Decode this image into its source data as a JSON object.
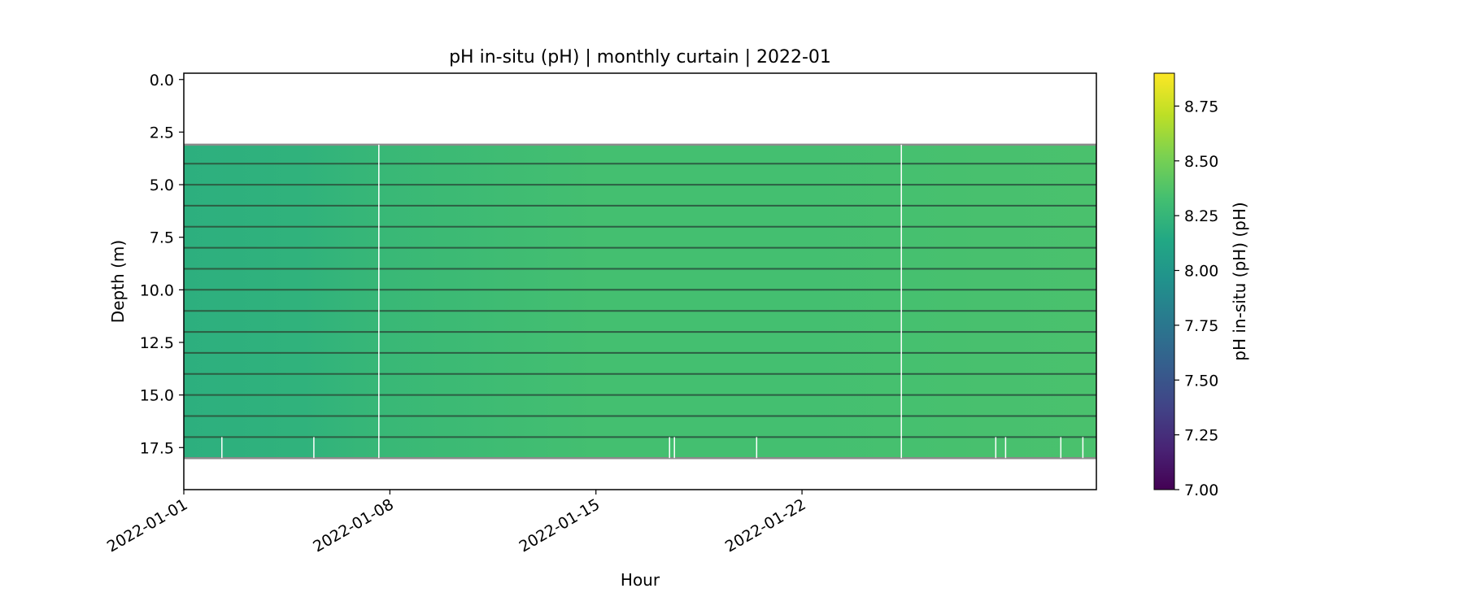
{
  "chart_data": {
    "type": "heatmap",
    "title": "pH in-situ (pH) | monthly curtain | 2022-01",
    "xlabel": "Hour",
    "ylabel": "Depth (m)",
    "colorbar_label": "pH in-situ (pH) (pH)",
    "colormap": "viridis",
    "x_start": "2022-01-01",
    "x_end": "2022-02-01",
    "xticks": [
      "2022-01-01",
      "2022-01-08",
      "2022-01-15",
      "2022-01-22"
    ],
    "ylim": [
      19.5,
      -0.3
    ],
    "yticks": [
      "0.0",
      "2.5",
      "5.0",
      "7.5",
      "10.0",
      "12.5",
      "15.0",
      "17.5"
    ],
    "clim": [
      7.0,
      8.9
    ],
    "cticks": [
      "7.00",
      "7.25",
      "7.50",
      "7.75",
      "8.00",
      "8.25",
      "8.50",
      "8.75"
    ],
    "data_depth_range": [
      3.1,
      18.0
    ],
    "sensor_depths": [
      3,
      4,
      5,
      6,
      7,
      8,
      9,
      10,
      11,
      12,
      13,
      14,
      15,
      16,
      17,
      18
    ],
    "ph_trend": [
      {
        "date": "2022-01-01",
        "ph": 8.2
      },
      {
        "date": "2022-01-05",
        "ph": 8.22
      },
      {
        "date": "2022-01-08",
        "ph": 8.27
      },
      {
        "date": "2022-01-15",
        "ph": 8.33
      },
      {
        "date": "2022-01-22",
        "ph": 8.33
      },
      {
        "date": "2022-02-01",
        "ph": 8.35
      }
    ],
    "data_gaps": [
      {
        "date": "2022-01-07T15:00",
        "depth_from": 3.1,
        "depth_to": 18.0
      },
      {
        "date": "2022-01-25T09:00",
        "depth_from": 3.1,
        "depth_to": 18.0
      },
      {
        "date": "2022-01-02T07:00",
        "depth_from": 17.0,
        "depth_to": 18.0
      },
      {
        "date": "2022-01-05T10:00",
        "depth_from": 17.0,
        "depth_to": 18.0
      },
      {
        "date": "2022-01-17T12:00",
        "depth_from": 17.0,
        "depth_to": 18.0
      },
      {
        "date": "2022-01-17T16:00",
        "depth_from": 17.0,
        "depth_to": 18.0
      },
      {
        "date": "2022-01-20T11:00",
        "depth_from": 17.0,
        "depth_to": 18.0
      },
      {
        "date": "2022-01-28T14:00",
        "depth_from": 17.0,
        "depth_to": 18.0
      },
      {
        "date": "2022-01-28T22:00",
        "depth_from": 17.0,
        "depth_to": 18.0
      },
      {
        "date": "2022-01-30T19:00",
        "depth_from": 17.0,
        "depth_to": 18.0
      },
      {
        "date": "2022-01-31T13:00",
        "depth_from": 17.0,
        "depth_to": 18.0
      }
    ],
    "grid": false
  }
}
